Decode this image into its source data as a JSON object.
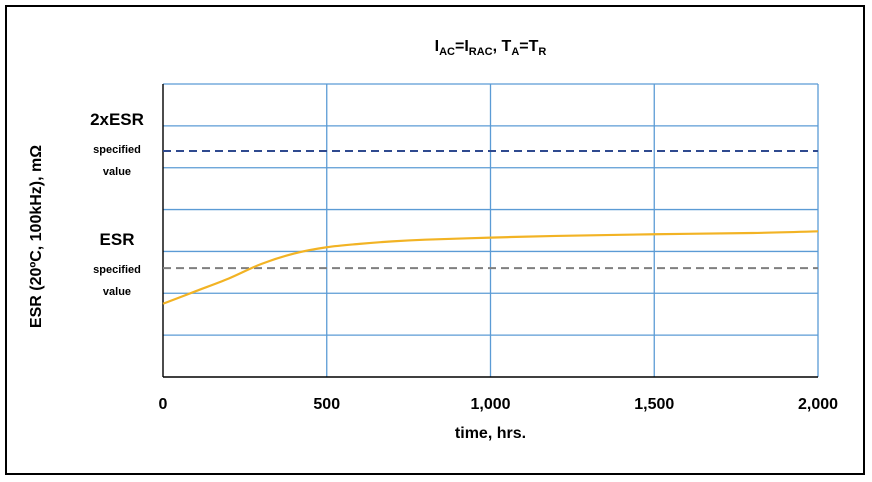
{
  "chart_data": {
    "type": "line",
    "title_parts": [
      {
        "t": "I"
      },
      {
        "t": "AC",
        "sub": true
      },
      {
        "t": "=I"
      },
      {
        "t": "RAC",
        "sub": true
      },
      {
        "t": ", T"
      },
      {
        "t": "A",
        "sub": true
      },
      {
        "t": "=T"
      },
      {
        "t": "R",
        "sub": true
      }
    ],
    "xlabel": "time, hrs.",
    "ylabel": "ESR (20ºC, 100kHz), mΩ",
    "xlim": [
      0,
      2000
    ],
    "ylim": [
      0,
      7
    ],
    "xticks": [
      {
        "value": 0,
        "label": "0"
      },
      {
        "value": 500,
        "label": "500"
      },
      {
        "value": 1000,
        "label": "1,000"
      },
      {
        "value": 1500,
        "label": "1,500"
      },
      {
        "value": 2000,
        "label": "2,000"
      }
    ],
    "y_gridlines": [
      1,
      2,
      3,
      4,
      5,
      6,
      7
    ],
    "grid": true,
    "reference_lines": [
      {
        "id": "2xesr",
        "value": 5.4,
        "label": "2xESR",
        "sublabel1": "specified",
        "sublabel2": "value",
        "color": "#2f4a8f"
      },
      {
        "id": "esr",
        "value": 2.6,
        "label": "ESR",
        "sublabel1": "specified",
        "sublabel2": "value",
        "color": "#7f7f7f"
      }
    ],
    "series": [
      {
        "color": "#f2b324",
        "x": [
          0,
          100,
          200,
          300,
          400,
          500,
          600,
          700,
          800,
          1000,
          1200,
          1500,
          1800,
          2000
        ],
        "y": [
          1.75,
          2.05,
          2.35,
          2.7,
          2.95,
          3.1,
          3.18,
          3.24,
          3.28,
          3.33,
          3.37,
          3.41,
          3.44,
          3.48
        ]
      }
    ]
  }
}
